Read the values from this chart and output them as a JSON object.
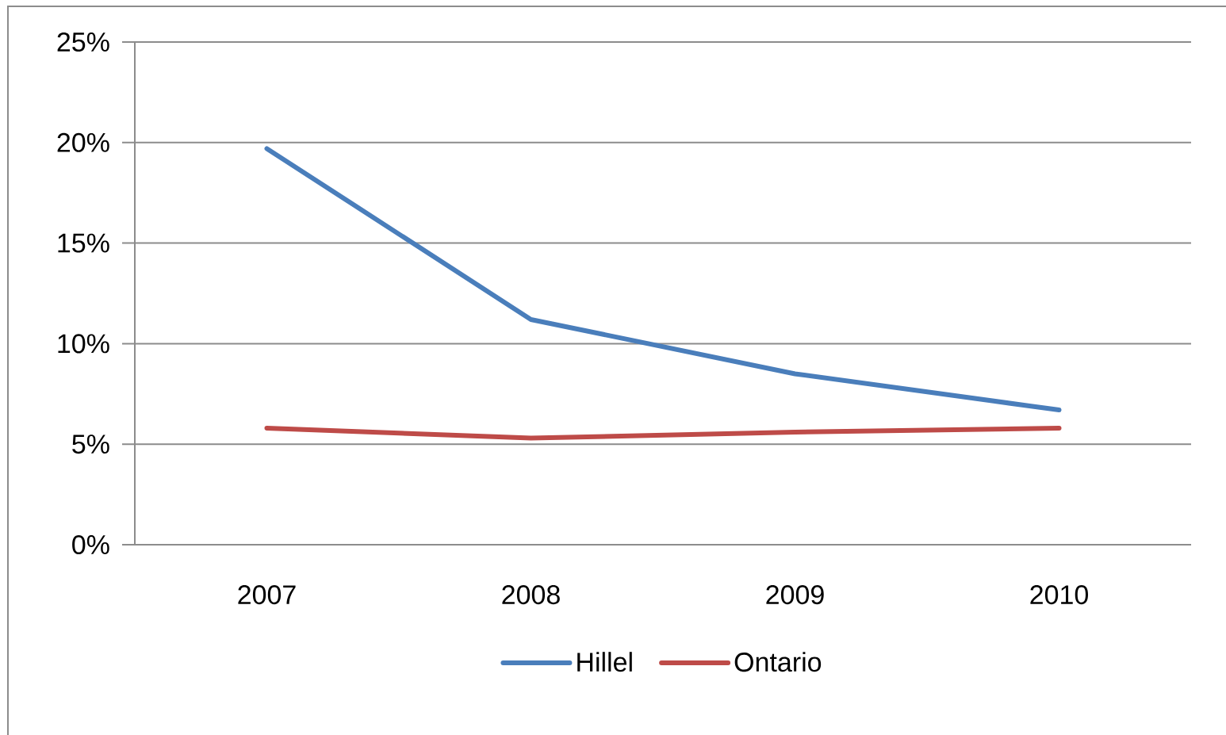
{
  "chart_data": {
    "type": "line",
    "categories": [
      "2007",
      "2008",
      "2009",
      "2010"
    ],
    "series": [
      {
        "name": "Hillel",
        "color": "#4a7ebb",
        "values": [
          19.7,
          11.2,
          8.5,
          6.7
        ]
      },
      {
        "name": "Ontario",
        "color": "#be4b48",
        "values": [
          5.8,
          5.3,
          5.6,
          5.8
        ]
      }
    ],
    "ylim": [
      0,
      25
    ],
    "yticks": [
      {
        "value": 0,
        "label": "0%"
      },
      {
        "value": 5,
        "label": "5%"
      },
      {
        "value": 10,
        "label": "10%"
      },
      {
        "value": 15,
        "label": "15%"
      },
      {
        "value": 20,
        "label": "20%"
      },
      {
        "value": 25,
        "label": "25%"
      }
    ],
    "grid": "y",
    "legend": "bottom",
    "marker": "none",
    "line_style": "solid"
  }
}
